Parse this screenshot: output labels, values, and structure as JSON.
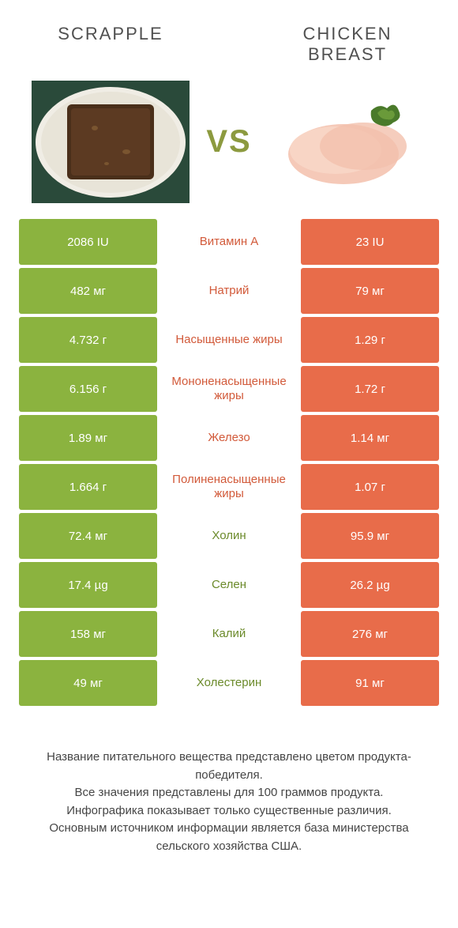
{
  "colors": {
    "green": "#8bb33f",
    "orange": "#e86c4a",
    "green_text": "#6b8a2a",
    "orange_text": "#d25a3a",
    "vs_color": "#8c9a3f",
    "title_color": "#505050",
    "footer_color": "#454545"
  },
  "header": {
    "left_title": "SCRAPPLE",
    "right_title": "CHICKEN BREAST",
    "vs": "VS"
  },
  "rows": [
    {
      "left": "2086 IU",
      "mid": "Витамин A",
      "right": "23 IU",
      "winner": "left"
    },
    {
      "left": "482 мг",
      "mid": "Натрий",
      "right": "79 мг",
      "winner": "left"
    },
    {
      "left": "4.732 г",
      "mid": "Насыщенные жиры",
      "right": "1.29 г",
      "winner": "left"
    },
    {
      "left": "6.156 г",
      "mid": "Мононенасыщенные жиры",
      "right": "1.72 г",
      "winner": "left"
    },
    {
      "left": "1.89 мг",
      "mid": "Железо",
      "right": "1.14 мг",
      "winner": "left"
    },
    {
      "left": "1.664 г",
      "mid": "Полиненасыщенные жиры",
      "right": "1.07 г",
      "winner": "left"
    },
    {
      "left": "72.4 мг",
      "mid": "Холин",
      "right": "95.9 мг",
      "winner": "right"
    },
    {
      "left": "17.4 µg",
      "mid": "Селен",
      "right": "26.2 µg",
      "winner": "right"
    },
    {
      "left": "158 мг",
      "mid": "Калий",
      "right": "276 мг",
      "winner": "right"
    },
    {
      "left": "49 мг",
      "mid": "Холестерин",
      "right": "91 мг",
      "winner": "right"
    }
  ],
  "footer": {
    "line1": "Название питательного вещества представлено цветом продукта-победителя.",
    "line2": "Все значения представлены для 100 граммов продукта.",
    "line3": "Инфографика показывает только существенные различия.",
    "line4": "Основным источником информации является база министерства сельского хозяйства США."
  }
}
